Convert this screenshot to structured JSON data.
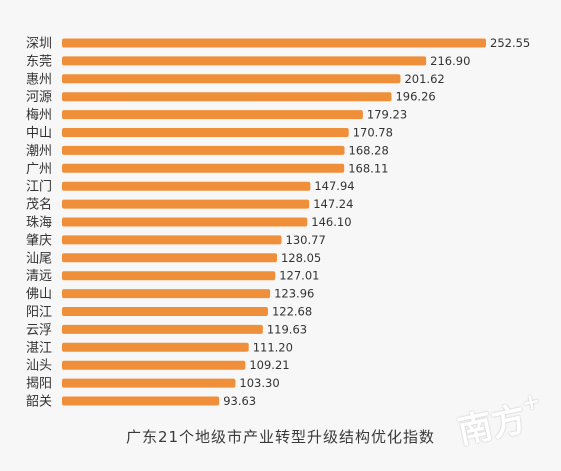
{
  "chart_data": {
    "type": "bar",
    "orientation": "horizontal",
    "title": "广东21个地级市产业转型升级结构优化指数",
    "categories": [
      "深圳",
      "东莞",
      "惠州",
      "河源",
      "梅州",
      "中山",
      "潮州",
      "广州",
      "江门",
      "茂名",
      "珠海",
      "肇庆",
      "汕尾",
      "清远",
      "佛山",
      "阳江",
      "云浮",
      "湛江",
      "汕头",
      "揭阳",
      "韶关"
    ],
    "values": [
      252.55,
      216.9,
      201.62,
      196.26,
      179.23,
      170.78,
      168.28,
      168.11,
      147.94,
      147.24,
      146.1,
      130.77,
      128.05,
      127.01,
      123.96,
      122.68,
      119.63,
      111.2,
      109.21,
      103.3,
      93.63
    ],
    "value_labels": [
      "252.55",
      "216.90",
      "201.62",
      "196.26",
      "179.23",
      "170.78",
      "168.28",
      "168.11",
      "147.94",
      "147.24",
      "146.10",
      "130.77",
      "128.05",
      "127.01",
      "123.96",
      "122.68",
      "119.63",
      "111.20",
      "109.21",
      "103.30",
      "93.63"
    ],
    "bar_color": "#f08f3a",
    "xlim": [
      0,
      252.55
    ],
    "grid": false,
    "legend": "none"
  },
  "watermark": {
    "text": "南方",
    "suffix": "+"
  }
}
